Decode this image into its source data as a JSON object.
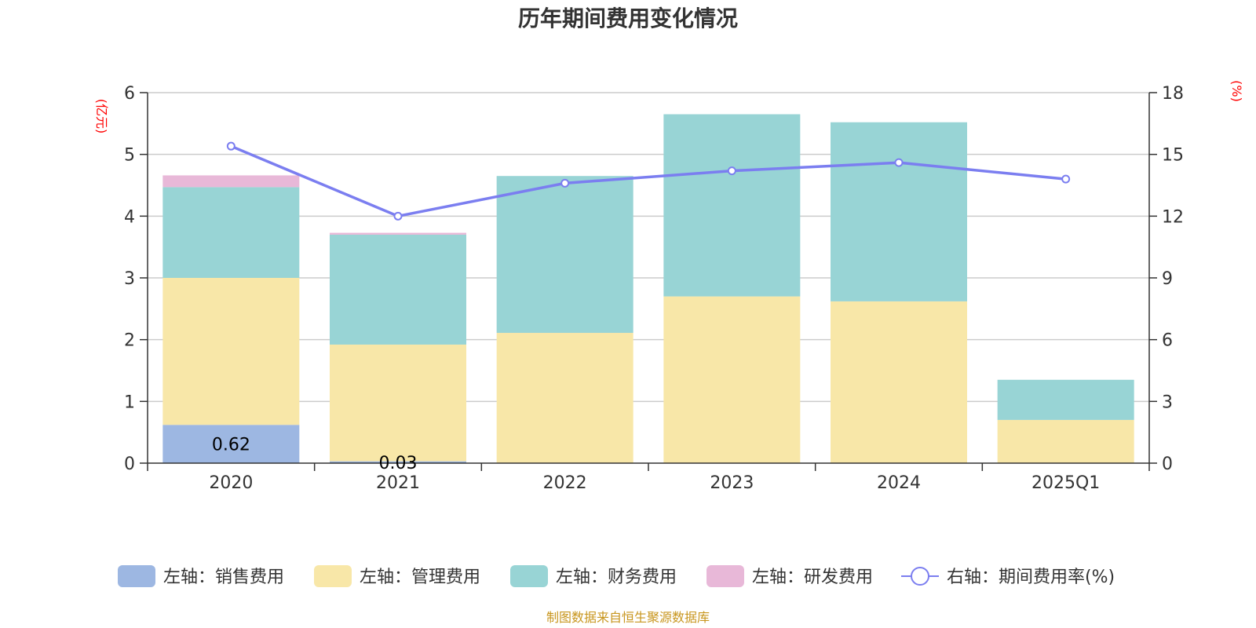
{
  "chart_data": {
    "type": "bar",
    "title": "历年期间费用变化情况",
    "categories": [
      "2020",
      "2021",
      "2022",
      "2023",
      "2024",
      "2025Q1"
    ],
    "left_axis": {
      "unit": "(亿元)",
      "ylim": [
        0,
        6
      ],
      "ticks": [
        "0",
        "1",
        "2",
        "3",
        "4",
        "5",
        "6"
      ]
    },
    "right_axis": {
      "unit": "(%)",
      "ylim": [
        0,
        18
      ],
      "ticks": [
        "0",
        "3",
        "6",
        "9",
        "12",
        "15",
        "18"
      ]
    },
    "series": [
      {
        "name": "左轴：销售费用",
        "type": "bar",
        "axis": "left",
        "color": "#9db7e2",
        "values": [
          0.62,
          0.03,
          0,
          0,
          0,
          0
        ],
        "labels": [
          "0.62",
          "0.03",
          "",
          "",
          "",
          ""
        ]
      },
      {
        "name": "左轴：管理费用",
        "type": "bar",
        "axis": "left",
        "color": "#f8e7a8",
        "values": [
          2.38,
          1.89,
          2.11,
          2.7,
          2.62,
          0.7
        ],
        "labels": [
          "",
          "",
          "",
          "",
          "",
          ""
        ]
      },
      {
        "name": "左轴：财务费用",
        "type": "bar",
        "axis": "left",
        "color": "#98d4d5",
        "values": [
          1.47,
          1.78,
          2.54,
          2.95,
          2.9,
          0.65
        ],
        "labels": [
          "",
          "",
          "",
          "",
          "",
          ""
        ]
      },
      {
        "name": "左轴：研发费用",
        "type": "bar",
        "axis": "left",
        "color": "#e8b8d8",
        "values": [
          0.19,
          0.03,
          0,
          0,
          0,
          0
        ],
        "labels": [
          "",
          "",
          "",
          "",
          "",
          ""
        ]
      },
      {
        "name": "右轴：期间费用率(%)",
        "type": "line",
        "axis": "right",
        "color": "#7b7ef0",
        "values": [
          15.4,
          12.0,
          13.6,
          14.2,
          14.6,
          13.8
        ]
      }
    ],
    "legend_position": "bottom",
    "grid": true
  },
  "source_text": "制图数据来自恒生聚源数据库"
}
